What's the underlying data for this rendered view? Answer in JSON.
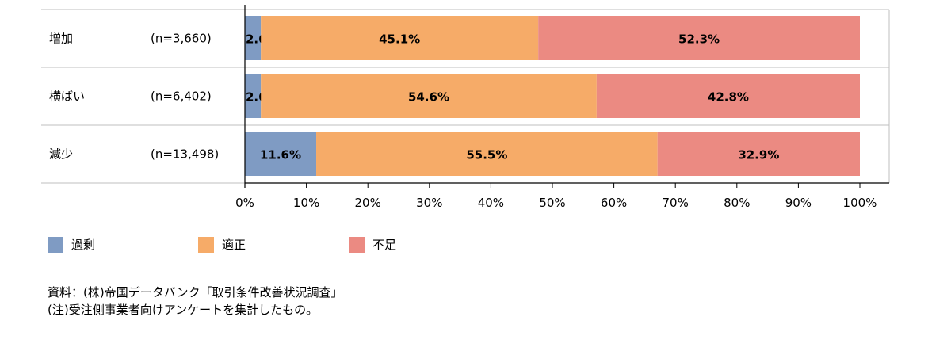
{
  "chart_data": {
    "type": "bar",
    "orientation": "horizontal",
    "stacked": true,
    "categories": [
      {
        "label": "増加",
        "n": "(n=3,660)"
      },
      {
        "label": "横ばい",
        "n": "(n=6,402)"
      },
      {
        "label": "減少",
        "n": "(n=13,498)"
      }
    ],
    "series": [
      {
        "name": "過剰",
        "color": "#7f9bc3",
        "values": [
          2.6,
          2.6,
          11.6
        ]
      },
      {
        "name": "適正",
        "color": "#f6ab68",
        "values": [
          45.1,
          54.6,
          55.5
        ]
      },
      {
        "name": "不足",
        "color": "#eb8a82",
        "values": [
          52.3,
          42.8,
          32.9
        ]
      }
    ],
    "xlim": [
      0,
      100
    ],
    "xticks": [
      "0%",
      "10%",
      "20%",
      "30%",
      "40%",
      "50%",
      "60%",
      "70%",
      "80%",
      "90%",
      "100%"
    ],
    "legend_position": "bottom-left"
  },
  "notes": [
    "資料：(株)帝国データバンク「取引条件改善状況調査」",
    "(注)受注側事業者向けアンケートを集計したもの。"
  ]
}
